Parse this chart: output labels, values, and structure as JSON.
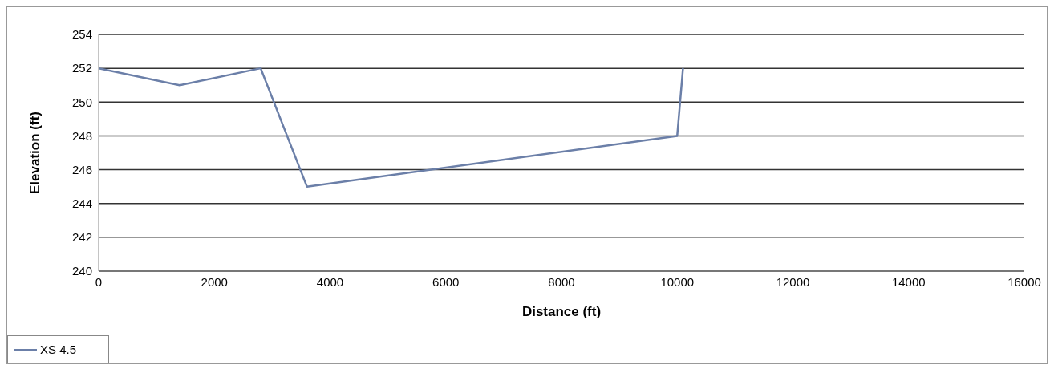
{
  "chart_data": {
    "type": "line",
    "xlabel": "Distance (ft)",
    "ylabel": "Elevation (ft)",
    "x": [
      0,
      1400,
      2800,
      3600,
      10000,
      10100
    ],
    "series": [
      {
        "name": "XS 4.5",
        "color": "#6b7fa8",
        "values": [
          252,
          251,
          252,
          245,
          248,
          252
        ]
      }
    ],
    "xlim": [
      0,
      16000
    ],
    "xticks": [
      0,
      2000,
      4000,
      6000,
      8000,
      10000,
      12000,
      14000,
      16000
    ],
    "ylim": [
      240,
      254
    ],
    "yticks": [
      240,
      242,
      244,
      246,
      248,
      250,
      252,
      254
    ],
    "grid": "y",
    "legend": "bottom left",
    "marker": "none",
    "line_style": "solid"
  }
}
